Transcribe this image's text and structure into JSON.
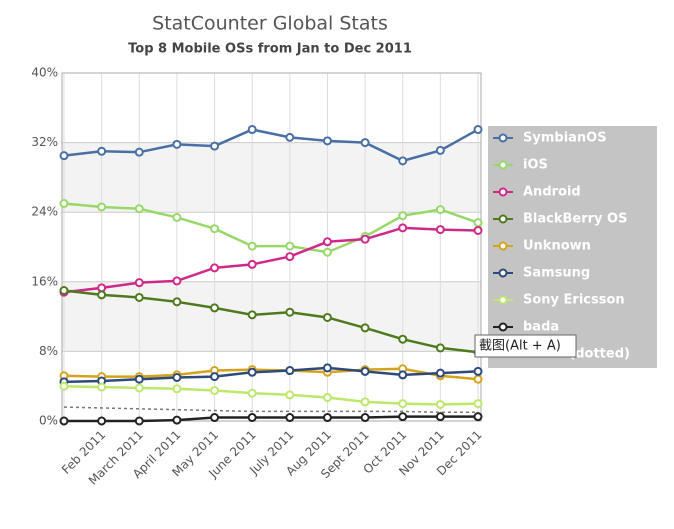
{
  "chart_data": {
    "type": "line",
    "title": "StatCounter Global Stats",
    "subtitle": "Top 8 Mobile OSs from Jan to Dec 2011",
    "categories": [
      null,
      "Feb 2011",
      "March 2011",
      "April 2011",
      "May 2011",
      "June 2011",
      "July 2011",
      "Aug 2011",
      "Sept 2011",
      "Oct 2011",
      "Nov 2011",
      "Dec 2011"
    ],
    "ylim": [
      0,
      40
    ],
    "yticks": [
      {
        "value": 0,
        "label": "0%"
      },
      {
        "value": 8,
        "label": "8%"
      },
      {
        "value": 16,
        "label": "16%"
      },
      {
        "value": 24,
        "label": "24%"
      },
      {
        "value": 32,
        "label": "32%"
      },
      {
        "value": 40,
        "label": "40%"
      }
    ],
    "grid": true,
    "legend": "right",
    "series": [
      {
        "name": "SymbianOS",
        "color": "#4a6fa5",
        "values": [
          30.5,
          31.0,
          30.9,
          31.8,
          31.6,
          33.5,
          32.6,
          32.2,
          32.0,
          29.9,
          31.1,
          33.5
        ]
      },
      {
        "name": "iOS",
        "color": "#98d86a",
        "values": [
          25.0,
          24.6,
          24.4,
          23.4,
          22.1,
          20.1,
          20.1,
          19.4,
          21.2,
          23.6,
          24.3,
          22.8
        ]
      },
      {
        "name": "Android",
        "color": "#d0288a",
        "values": [
          14.8,
          15.3,
          15.9,
          16.1,
          17.6,
          18.0,
          18.9,
          20.6,
          20.9,
          22.2,
          22.0,
          21.9
        ]
      },
      {
        "name": "BlackBerry OS",
        "color": "#4e7a1e",
        "values": [
          15.0,
          14.5,
          14.2,
          13.7,
          13.0,
          12.2,
          12.5,
          11.9,
          10.7,
          9.4,
          8.4,
          7.9
        ]
      },
      {
        "name": "Unknown",
        "color": "#d4a21c",
        "values": [
          5.2,
          5.1,
          5.1,
          5.3,
          5.8,
          5.9,
          5.8,
          5.6,
          5.9,
          6.0,
          5.2,
          4.8
        ]
      },
      {
        "name": "Samsung",
        "color": "#2e4a7a",
        "values": [
          4.5,
          4.6,
          4.8,
          5.0,
          5.1,
          5.6,
          5.8,
          6.1,
          5.7,
          5.3,
          5.5,
          5.7
        ]
      },
      {
        "name": "Sony Ericsson",
        "color": "#bde86d",
        "values": [
          4.0,
          3.9,
          3.8,
          3.7,
          3.5,
          3.2,
          3.0,
          2.7,
          2.2,
          2.0,
          1.9,
          2.0
        ]
      },
      {
        "name": "bada",
        "color": "#222222",
        "values": [
          0.0,
          0.0,
          0.0,
          0.1,
          0.4,
          0.4,
          0.4,
          0.4,
          0.4,
          0.5,
          0.5,
          0.5
        ]
      },
      {
        "name": "Other (dotted)",
        "color": "#777777",
        "dotted": true,
        "values": [
          1.6,
          1.5,
          1.4,
          1.3,
          1.2,
          1.1,
          1.1,
          1.1,
          1.1,
          1.1,
          1.0,
          1.0
        ]
      }
    ]
  },
  "tooltip": "截图(Alt + A)"
}
